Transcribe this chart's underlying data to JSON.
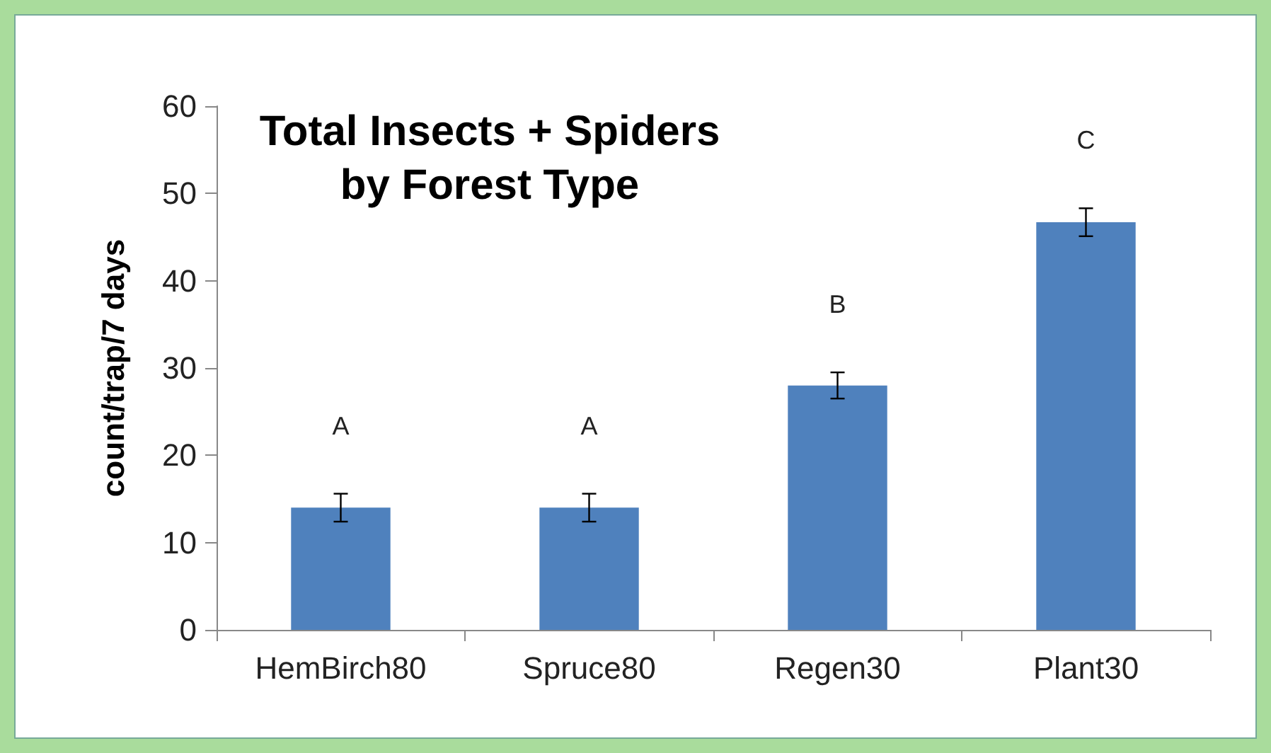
{
  "chart_data": {
    "type": "bar",
    "title": "Total Insects + Spiders\nby Forest Type",
    "ylabel": "count/trap/7 days",
    "categories": [
      "HemBirch80",
      "Spruce80",
      "Regen30",
      "Plant30"
    ],
    "values": [
      14,
      14,
      28,
      46.7
    ],
    "errors": [
      1.6,
      1.6,
      1.5,
      1.6
    ],
    "color": "#4f81bd",
    "ylim": [
      0,
      60
    ],
    "yticks": [
      0,
      10,
      20,
      30,
      40,
      50,
      60
    ],
    "grid": false,
    "annotations": [
      "A",
      "A",
      "B",
      "C"
    ]
  }
}
